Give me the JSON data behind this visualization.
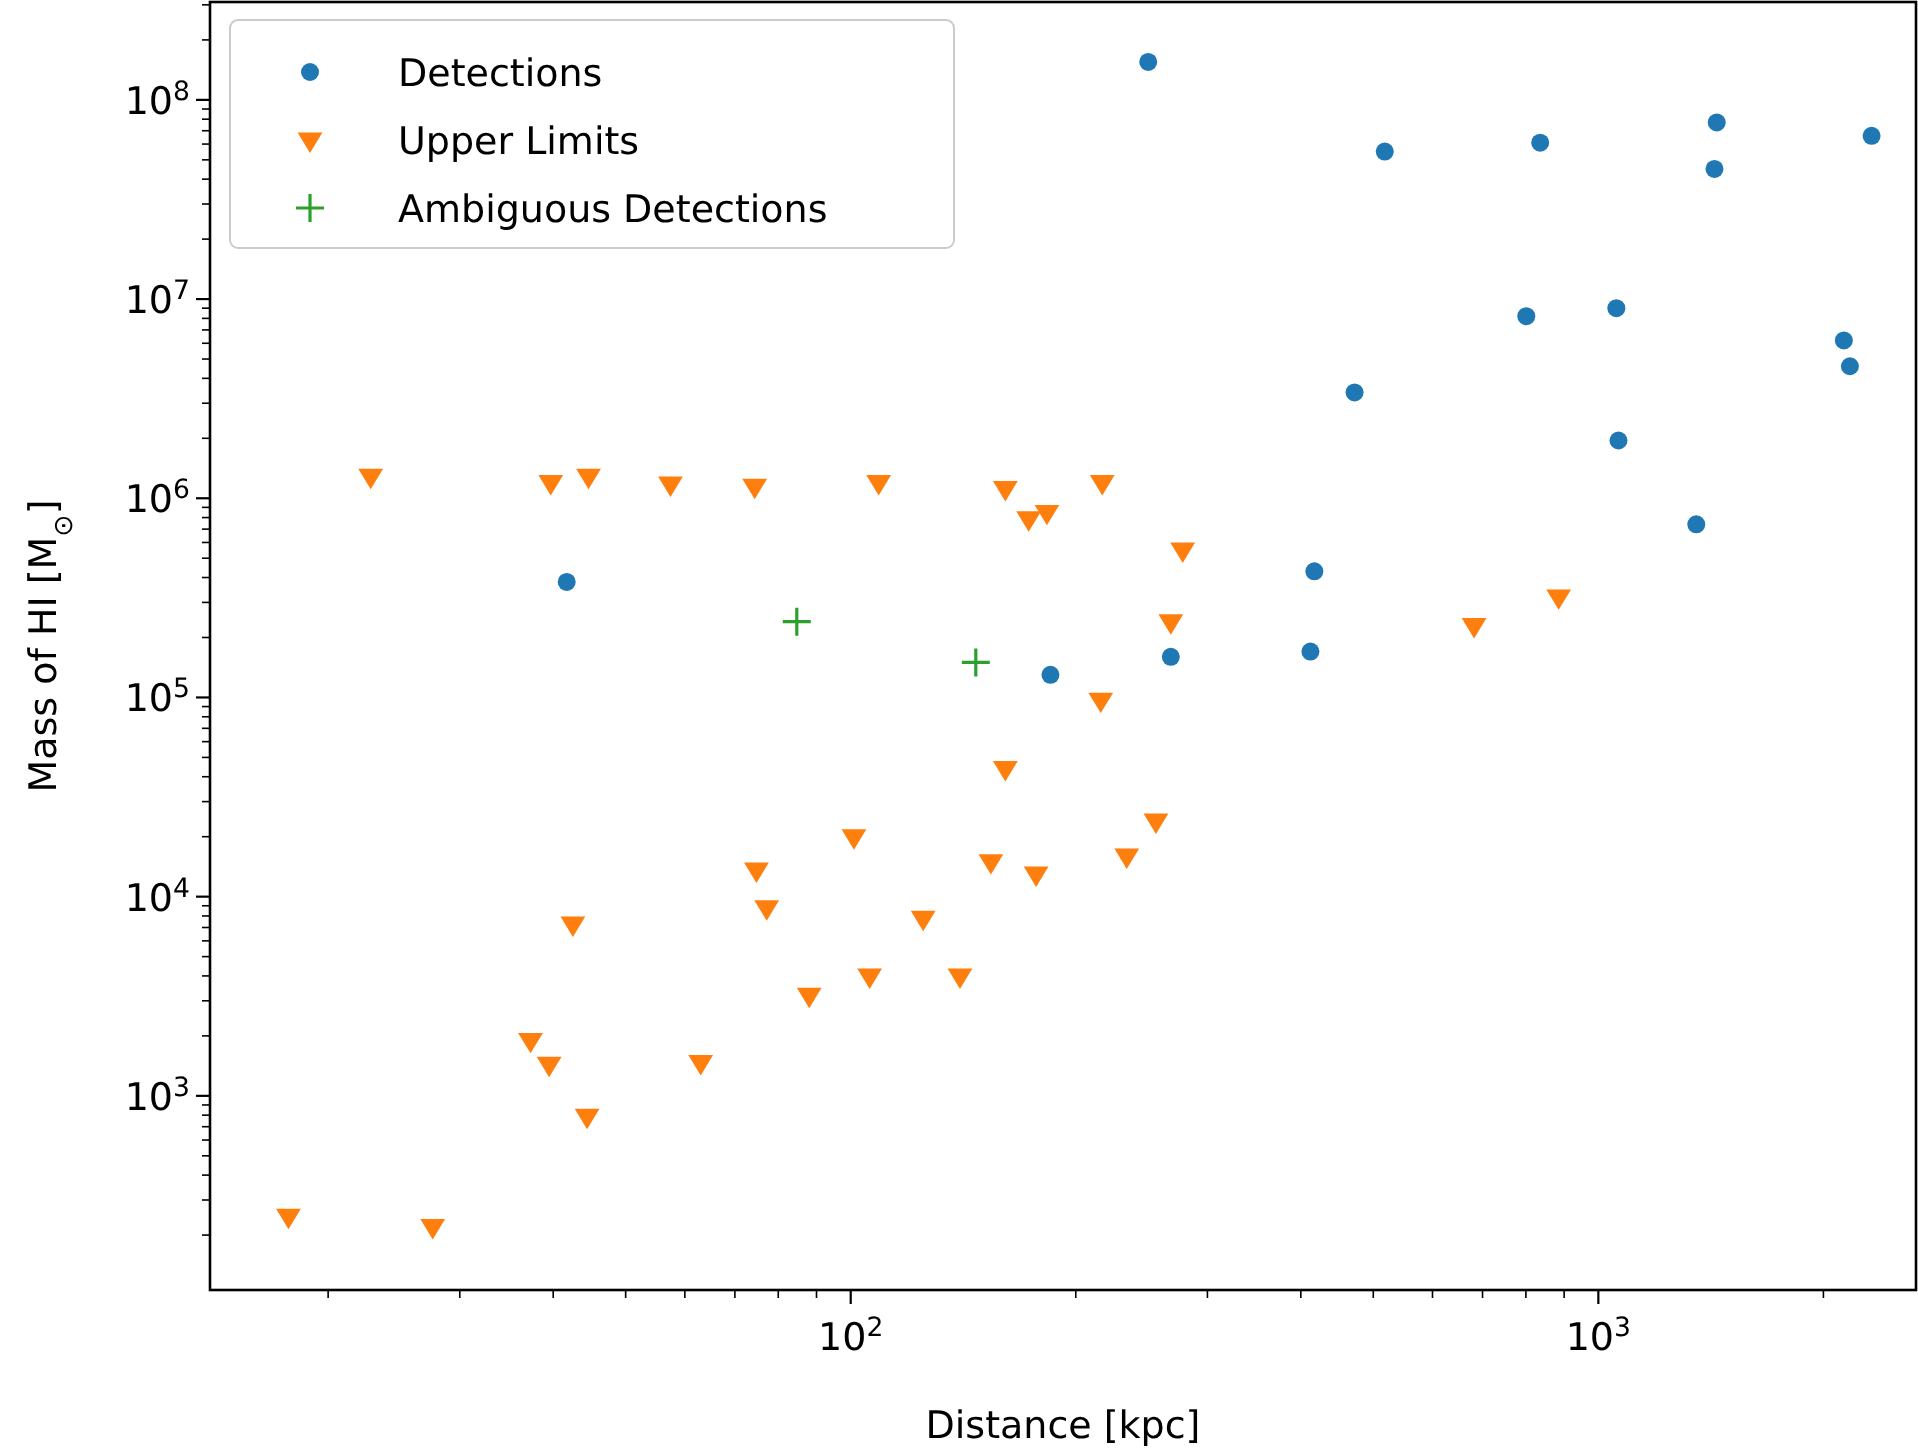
{
  "chart_data": {
    "type": "scatter",
    "xlabel": "Distance [kpc]",
    "ylabel": "Mass of HI [M$_{⊙}$]",
    "log": "xy",
    "legend": "top left",
    "grid": false,
    "xlim": [
      13.9,
      2660
    ],
    "ylim": [
      106,
      310000000.0
    ],
    "xticks": [
      {
        "value": 20,
        "label": null
      },
      {
        "value": 30,
        "label": null
      },
      {
        "value": 40,
        "label": null
      },
      {
        "value": 50,
        "label": null
      },
      {
        "value": 60,
        "label": null
      },
      {
        "value": 70,
        "label": null
      },
      {
        "value": 80,
        "label": null
      },
      {
        "value": 90,
        "label": null
      },
      {
        "value": 100,
        "label": "10$^{2}$"
      },
      {
        "value": 200,
        "label": null
      },
      {
        "value": 300,
        "label": null
      },
      {
        "value": 400,
        "label": null
      },
      {
        "value": 500,
        "label": null
      },
      {
        "value": 600,
        "label": null
      },
      {
        "value": 700,
        "label": null
      },
      {
        "value": 800,
        "label": null
      },
      {
        "value": 900,
        "label": null
      },
      {
        "value": 1000,
        "label": "10$^{3}$"
      },
      {
        "value": 2000,
        "label": null
      }
    ],
    "yticks": [
      {
        "value": 200,
        "label": null
      },
      {
        "value": 300,
        "label": null
      },
      {
        "value": 400,
        "label": null
      },
      {
        "value": 500,
        "label": null
      },
      {
        "value": 600,
        "label": null
      },
      {
        "value": 700,
        "label": null
      },
      {
        "value": 800,
        "label": null
      },
      {
        "value": 900,
        "label": null
      },
      {
        "value": 1000,
        "label": "10$^{3}$"
      },
      {
        "value": 2000,
        "label": null
      },
      {
        "value": 3000,
        "label": null
      },
      {
        "value": 4000,
        "label": null
      },
      {
        "value": 5000,
        "label": null
      },
      {
        "value": 6000,
        "label": null
      },
      {
        "value": 7000,
        "label": null
      },
      {
        "value": 8000,
        "label": null
      },
      {
        "value": 9000,
        "label": null
      },
      {
        "value": 10000,
        "label": "10$^{4}$"
      },
      {
        "value": 20000,
        "label": null
      },
      {
        "value": 30000,
        "label": null
      },
      {
        "value": 40000,
        "label": null
      },
      {
        "value": 50000,
        "label": null
      },
      {
        "value": 60000,
        "label": null
      },
      {
        "value": 70000,
        "label": null
      },
      {
        "value": 80000,
        "label": null
      },
      {
        "value": 90000,
        "label": null
      },
      {
        "value": 100000,
        "label": "10$^{5}$"
      },
      {
        "value": 200000,
        "label": null
      },
      {
        "value": 300000,
        "label": null
      },
      {
        "value": 400000,
        "label": null
      },
      {
        "value": 500000,
        "label": null
      },
      {
        "value": 600000,
        "label": null
      },
      {
        "value": 700000,
        "label": null
      },
      {
        "value": 800000,
        "label": null
      },
      {
        "value": 900000,
        "label": null
      },
      {
        "value": 1000000,
        "label": "10$^{6}$"
      },
      {
        "value": 2000000,
        "label": null
      },
      {
        "value": 3000000,
        "label": null
      },
      {
        "value": 4000000,
        "label": null
      },
      {
        "value": 5000000,
        "label": null
      },
      {
        "value": 6000000,
        "label": null
      },
      {
        "value": 7000000,
        "label": null
      },
      {
        "value": 8000000,
        "label": null
      },
      {
        "value": 9000000,
        "label": null
      },
      {
        "value": 10000000,
        "label": "10$^{7}$"
      },
      {
        "value": 20000000,
        "label": null
      },
      {
        "value": 30000000,
        "label": null
      },
      {
        "value": 40000000,
        "label": null
      },
      {
        "value": 50000000,
        "label": null
      },
      {
        "value": 60000000,
        "label": null
      },
      {
        "value": 70000000,
        "label": null
      },
      {
        "value": 80000000,
        "label": null
      },
      {
        "value": 90000000,
        "label": null
      },
      {
        "value": 100000000,
        "label": "10$^{8}$"
      },
      {
        "value": 200000000,
        "label": null
      },
      {
        "value": 300000000,
        "label": null
      }
    ],
    "series": [
      {
        "name": "Detections",
        "color": "#1f77b4",
        "marker": "circle",
        "x": [
          250,
          518,
          836,
          1440,
          1430,
          2320,
          2130,
          2170,
          801,
          1057,
          472,
          1064,
          1352,
          417,
          412,
          268,
          185,
          41.7
        ],
        "values": [
          155000000.0,
          55000000.0,
          61000000.0,
          77000000.0,
          45000000.0,
          66000000.0,
          6200000.0,
          4600000.0,
          8200000.0,
          9000000.0,
          3400000.0,
          1950000.0,
          740000.0,
          430000.0,
          170000.0,
          160000.0,
          130000.0,
          380000.0
        ]
      },
      {
        "name": "Upper Limits",
        "color": "#ff7f0e",
        "marker": "triangle",
        "x": [
          17.7,
          27.6,
          22.8,
          39.7,
          44.6,
          57.4,
          74.4,
          109,
          161,
          173,
          183,
          217,
          278,
          268,
          216,
          682,
          885,
          161,
          256,
          234,
          154,
          177,
          101,
          74.8,
          77.2,
          125,
          42.5,
          106,
          140,
          88,
          37.3,
          39.5,
          63,
          44.4
        ],
        "values": [
          249,
          221,
          1290000.0,
          1200000.0,
          1290000.0,
          1180000.0,
          1150000.0,
          1200000.0,
          1120000.0,
          790000.0,
          850000.0,
          1200000.0,
          550000.0,
          240000.0,
          97000.0,
          230000.0,
          320000.0,
          44000.0,
          24000.0,
          16000.0,
          15000.0,
          13000.0,
          20000.0,
          13600.0,
          8800.0,
          7800.0,
          7300.0,
          4000.0,
          4000.0,
          3200.0,
          1900.0,
          1440.0,
          1470.0,
          790
        ]
      },
      {
        "name": "Ambiguous Detections",
        "color": "#2ca02c",
        "marker": "cross",
        "x": [
          84.7,
          147
        ],
        "values": [
          240000.0,
          150000.0
        ]
      }
    ]
  }
}
